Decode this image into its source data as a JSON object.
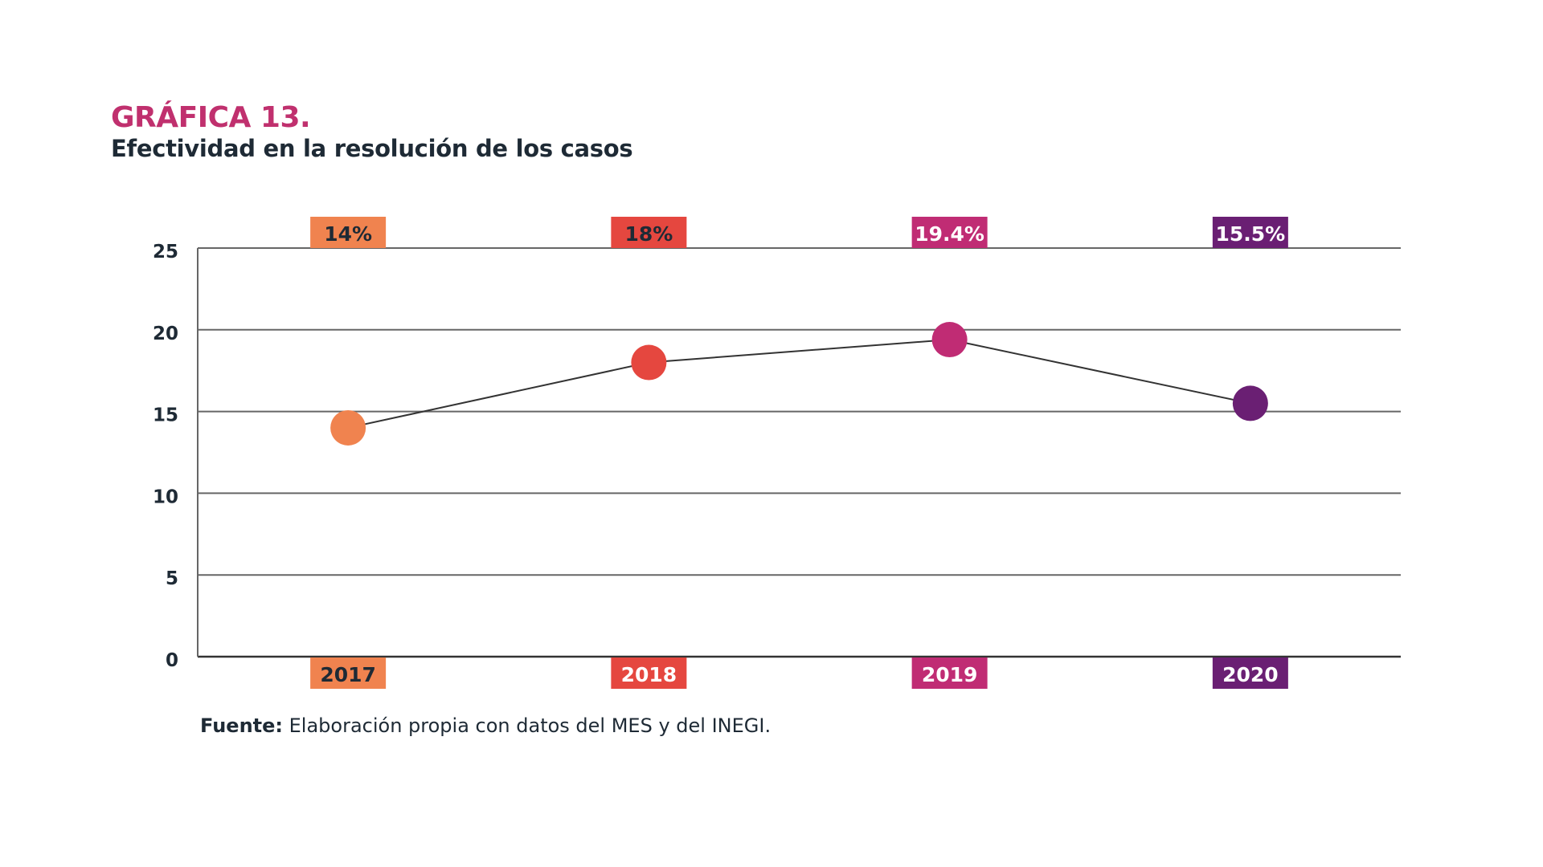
{
  "title": "GRÁFICA 13.",
  "subtitle": "Efectividad en la resolución de los casos",
  "source_label": "Fuente:",
  "source_text": " Elaboración propia con datos del MES y del INEGI.",
  "chart_data": {
    "type": "line",
    "title": "GRÁFICA 13.",
    "subtitle": "Efectividad en la resolución de los casos",
    "categories": [
      "2017",
      "2018",
      "2019",
      "2020"
    ],
    "values": [
      14,
      18,
      19.4,
      15.5
    ],
    "data_labels": [
      "14%",
      "18%",
      "19.4%",
      "15.5%"
    ],
    "ylim": [
      0,
      25
    ],
    "yticks": [
      "0",
      "5",
      "10",
      "15",
      "20",
      "25"
    ],
    "grid": true,
    "line_color": "#333333",
    "point_colors": [
      "#F0834F",
      "#E5473F",
      "#C02C74",
      "#6A1F73"
    ],
    "label_text_colors": [
      "#1E2A35",
      "#1E2A35",
      "#FFFFFF",
      "#FFFFFF"
    ],
    "category_text_colors": [
      "#1E2A35",
      "#FFFFFF",
      "#FFFFFF",
      "#FFFFFF"
    ]
  }
}
